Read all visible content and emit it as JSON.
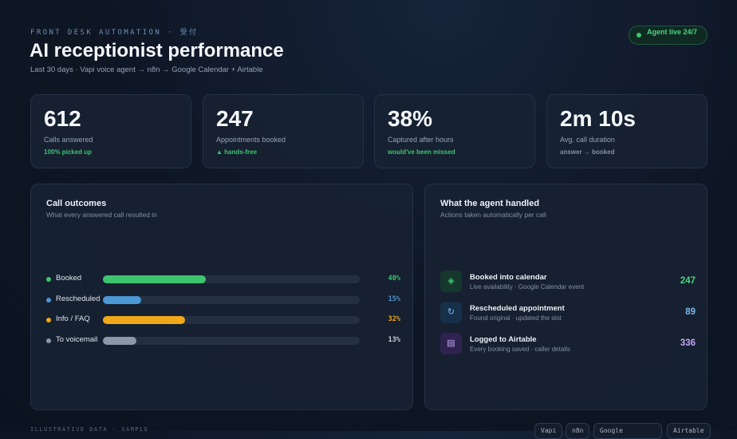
{
  "header": {
    "eyebrow": "FRONT DESK AUTOMATION · 受付",
    "title": "AI receptionist performance",
    "subtitle": "Last 30 days · Vapi voice agent → n8n → Google Calendar + Airtable",
    "badge": "Agent live 24/7"
  },
  "kpis": [
    {
      "value": 612,
      "label": "Calls answered",
      "note": "100% picked up"
    },
    {
      "value": 247,
      "label": "Appointments booked",
      "note": "▲ hands-free"
    },
    {
      "value": "38%",
      "label": "Captured after hours",
      "note": "would've been missed"
    },
    {
      "value": "2m 10s",
      "label": "Avg. call duration",
      "note": "answer → booked"
    }
  ],
  "chart_data": {
    "type": "bar",
    "title": "Call outcomes",
    "subtitle": "What every answered call resulted in",
    "categories": [
      "Booked",
      "Rescheduled",
      "Info / FAQ",
      "To voicemail"
    ],
    "values": [
      40,
      15,
      32,
      13
    ],
    "value_labels": [
      "40%",
      "15%",
      "32%",
      "13%"
    ],
    "colors": [
      "#3ec46d",
      "#4a98d4",
      "#f0a818",
      "#8c97a8"
    ],
    "xlim": [
      0,
      100
    ]
  },
  "handled": {
    "title": "What the agent handled",
    "subtitle": "Actions taken automatically per call",
    "items": [
      {
        "title": "Booked into calendar",
        "detail": "Live availability · Google Calendar event",
        "count": 247
      },
      {
        "title": "Rescheduled appointment",
        "detail": "Found original · updated the slot",
        "count": 89
      },
      {
        "title": "Logged to Airtable",
        "detail": "Every booking saved · caller details",
        "count": 336
      }
    ]
  },
  "footer": {
    "note": "ILLUSTRATIVE DATA · SAMPLE",
    "chips": [
      "Vapi",
      "n8n",
      "Google",
      "Airtable"
    ]
  }
}
